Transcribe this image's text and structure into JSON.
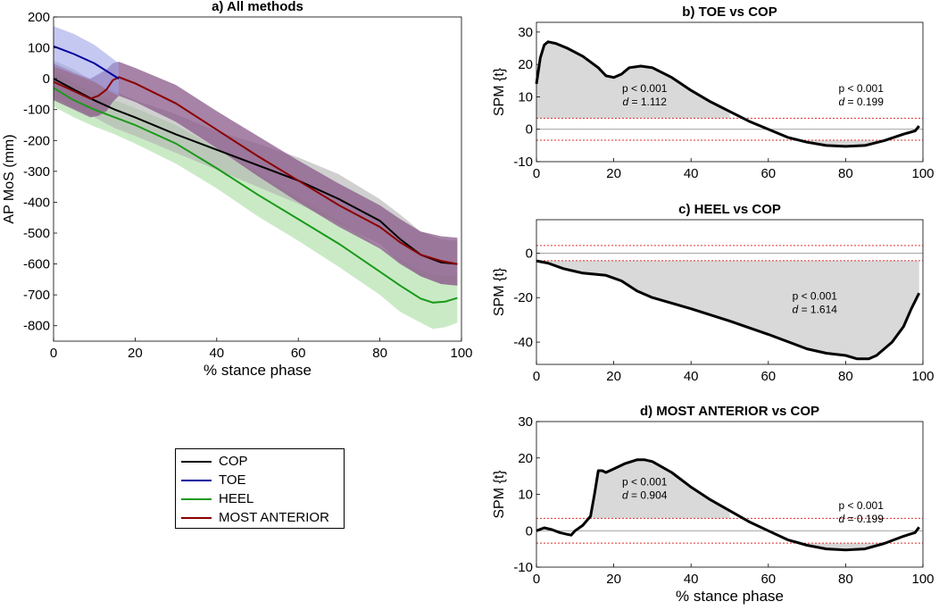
{
  "chart_data": [
    {
      "id": "a",
      "type": "line",
      "title": "a) All methods",
      "xlabel": "% stance phase",
      "ylabel": "AP MoS (mm)",
      "xlim": [
        0,
        100
      ],
      "ylim": [
        -850,
        200
      ],
      "xticks": [
        0,
        20,
        40,
        60,
        80,
        100
      ],
      "yticks": [
        200,
        100,
        0,
        -100,
        -200,
        -300,
        -400,
        -500,
        -600,
        -700,
        -800
      ],
      "legend_position": "below",
      "series": [
        {
          "name": "TOE",
          "color": "#0000a0",
          "band": "#9fa3e6",
          "x": [
            0,
            5,
            10,
            13,
            16
          ],
          "y": [
            105,
            80,
            50,
            25,
            0
          ],
          "upper": [
            170,
            145,
            110,
            80,
            50
          ],
          "lower": [
            40,
            15,
            -10,
            -35,
            -55
          ]
        },
        {
          "name": "HEEL",
          "color": "#1a9a1a",
          "band": "#a6dca0",
          "x": [
            0,
            5,
            10,
            15,
            20,
            30,
            40,
            50,
            60,
            70,
            80,
            85,
            90,
            93,
            96,
            99
          ],
          "y": [
            -30,
            -70,
            -100,
            -125,
            -150,
            -210,
            -290,
            -375,
            -455,
            -535,
            -625,
            -670,
            -712,
            -725,
            -722,
            -710
          ],
          "upper": [
            30,
            -15,
            -45,
            -70,
            -95,
            -150,
            -225,
            -305,
            -385,
            -460,
            -545,
            -585,
            -620,
            -635,
            -640,
            -640
          ],
          "lower": [
            -90,
            -125,
            -155,
            -180,
            -210,
            -275,
            -355,
            -445,
            -525,
            -610,
            -700,
            -755,
            -790,
            -810,
            -805,
            -790
          ]
        },
        {
          "name": "COP",
          "color": "#000000",
          "band": "#b0b0b0",
          "x": [
            0,
            5,
            10,
            15,
            20,
            30,
            40,
            50,
            60,
            70,
            80,
            85,
            90,
            95,
            99
          ],
          "y": [
            0,
            -35,
            -70,
            -100,
            -125,
            -180,
            -230,
            -280,
            -330,
            -390,
            -460,
            -520,
            -570,
            -595,
            -600
          ],
          "upper": [
            60,
            30,
            -10,
            -40,
            -70,
            -115,
            -170,
            -210,
            -255,
            -310,
            -390,
            -440,
            -495,
            -520,
            -525
          ],
          "lower": [
            -60,
            -95,
            -125,
            -160,
            -185,
            -240,
            -295,
            -350,
            -405,
            -470,
            -535,
            -595,
            -640,
            -665,
            -670
          ]
        },
        {
          "name": "MOST ANTERIOR",
          "color": "#8b0000",
          "band": "#8a5a8a",
          "x": [
            0,
            5,
            9,
            11,
            13,
            14.5,
            16,
            20,
            30,
            40,
            50,
            60,
            70,
            80,
            85,
            90,
            95,
            99
          ],
          "y": [
            -10,
            -40,
            -65,
            -55,
            -35,
            -5,
            5,
            -15,
            -80,
            -165,
            -250,
            -330,
            -410,
            -480,
            -530,
            -570,
            -590,
            -600
          ],
          "upper": [
            50,
            20,
            0,
            15,
            30,
            50,
            55,
            35,
            -20,
            -105,
            -185,
            -265,
            -340,
            -410,
            -455,
            -495,
            -510,
            -515
          ],
          "lower": [
            -70,
            -100,
            -125,
            -120,
            -105,
            -75,
            -55,
            -75,
            -140,
            -225,
            -315,
            -400,
            -480,
            -550,
            -600,
            -640,
            -665,
            -670
          ]
        }
      ]
    },
    {
      "id": "b",
      "type": "line",
      "title": "b) TOE vs COP",
      "xlabel": "",
      "ylabel": "SPM {t}",
      "xlim": [
        0,
        100
      ],
      "ylim": [
        -10,
        33
      ],
      "xticks": [
        0,
        20,
        40,
        60,
        80,
        100
      ],
      "yticks": [
        30,
        20,
        10,
        0,
        -10
      ],
      "threshold": 3.4,
      "x": [
        0,
        1,
        2,
        3,
        5,
        8,
        12,
        16,
        18,
        20,
        22,
        24,
        27,
        30,
        35,
        40,
        45,
        50,
        55,
        60,
        65,
        70,
        75,
        80,
        85,
        90,
        95,
        98,
        99
      ],
      "y": [
        14,
        22,
        26,
        27,
        26.5,
        25,
        22.5,
        19,
        16.5,
        16,
        17,
        19,
        19.5,
        19,
        16,
        12,
        8.5,
        5.5,
        2.5,
        0,
        -2.5,
        -4,
        -5,
        -5.3,
        -5,
        -3.5,
        -1.5,
        -0.5,
        1
      ],
      "annotations": [
        {
          "p": "p < 0.001",
          "d_label": "d",
          "d_value": " = 1.112",
          "x": 28,
          "y": 11.5
        },
        {
          "p": "p < 0.001",
          "d_label": "d",
          "d_value": " = 0.199",
          "x": 84,
          "y": 11.5
        }
      ]
    },
    {
      "id": "c",
      "type": "line",
      "title": "c) HEEL vs COP",
      "xlabel": "",
      "ylabel": "SPM {t}",
      "xlim": [
        0,
        100
      ],
      "ylim": [
        -50,
        15
      ],
      "xticks": [
        0,
        20,
        40,
        60,
        80,
        100
      ],
      "yticks": [
        0,
        -20,
        -40
      ],
      "threshold": 3.4,
      "x": [
        0,
        3,
        7,
        12,
        18,
        22,
        26,
        30,
        40,
        50,
        60,
        70,
        75,
        80,
        83,
        86,
        88,
        92,
        95,
        97,
        99
      ],
      "y": [
        -3.5,
        -4.5,
        -7,
        -9,
        -10,
        -12.5,
        -17,
        -20,
        -25,
        -30.5,
        -36.5,
        -43,
        -45,
        -46,
        -47.5,
        -47.5,
        -46,
        -40,
        -33,
        -25,
        -18
      ],
      "annotations": [
        {
          "p": "p < 0.001",
          "d_label": "d",
          "d_value": " = 1.614",
          "x": 72,
          "y": -21
        }
      ]
    },
    {
      "id": "d",
      "type": "line",
      "title": "d) MOST ANTERIOR vs COP",
      "xlabel": "% stance phase",
      "ylabel": "SPM {t}",
      "xlim": [
        0,
        100
      ],
      "ylim": [
        -10,
        30
      ],
      "xticks": [
        0,
        20,
        40,
        60,
        80,
        100
      ],
      "yticks": [
        30,
        20,
        10,
        0,
        -10
      ],
      "threshold": 3.4,
      "x": [
        0,
        2,
        4,
        6,
        8,
        9,
        10,
        12,
        14,
        15,
        16,
        17,
        18,
        20,
        23,
        26,
        28,
        30,
        35,
        40,
        45,
        50,
        55,
        60,
        65,
        70,
        75,
        80,
        85,
        90,
        95,
        98,
        99
      ],
      "y": [
        0,
        0.8,
        0.3,
        -0.5,
        -1,
        -1.2,
        0,
        1.5,
        4,
        10,
        16.5,
        16.5,
        16,
        17,
        18.5,
        19.5,
        19.5,
        19,
        16,
        12,
        8.5,
        5.5,
        2.5,
        0,
        -2.5,
        -4,
        -5,
        -5.3,
        -5,
        -3.5,
        -1.5,
        -0.5,
        1
      ],
      "annotations": [
        {
          "p": "p < 0.001",
          "d_label": "d",
          "d_value": " = 0.904",
          "x": 28,
          "y": 12.5
        },
        {
          "p": "p < 0.001",
          "d_label": "d",
          "d_value": " = 0.199",
          "x": 84,
          "y": 6
        }
      ]
    }
  ],
  "legend": {
    "items": [
      {
        "label": "COP",
        "color": "#000000"
      },
      {
        "label": "TOE",
        "color": "#0000a0"
      },
      {
        "label": "HEEL",
        "color": "#1a9a1a"
      },
      {
        "label": "MOST ANTERIOR",
        "color": "#8b0000"
      }
    ]
  }
}
